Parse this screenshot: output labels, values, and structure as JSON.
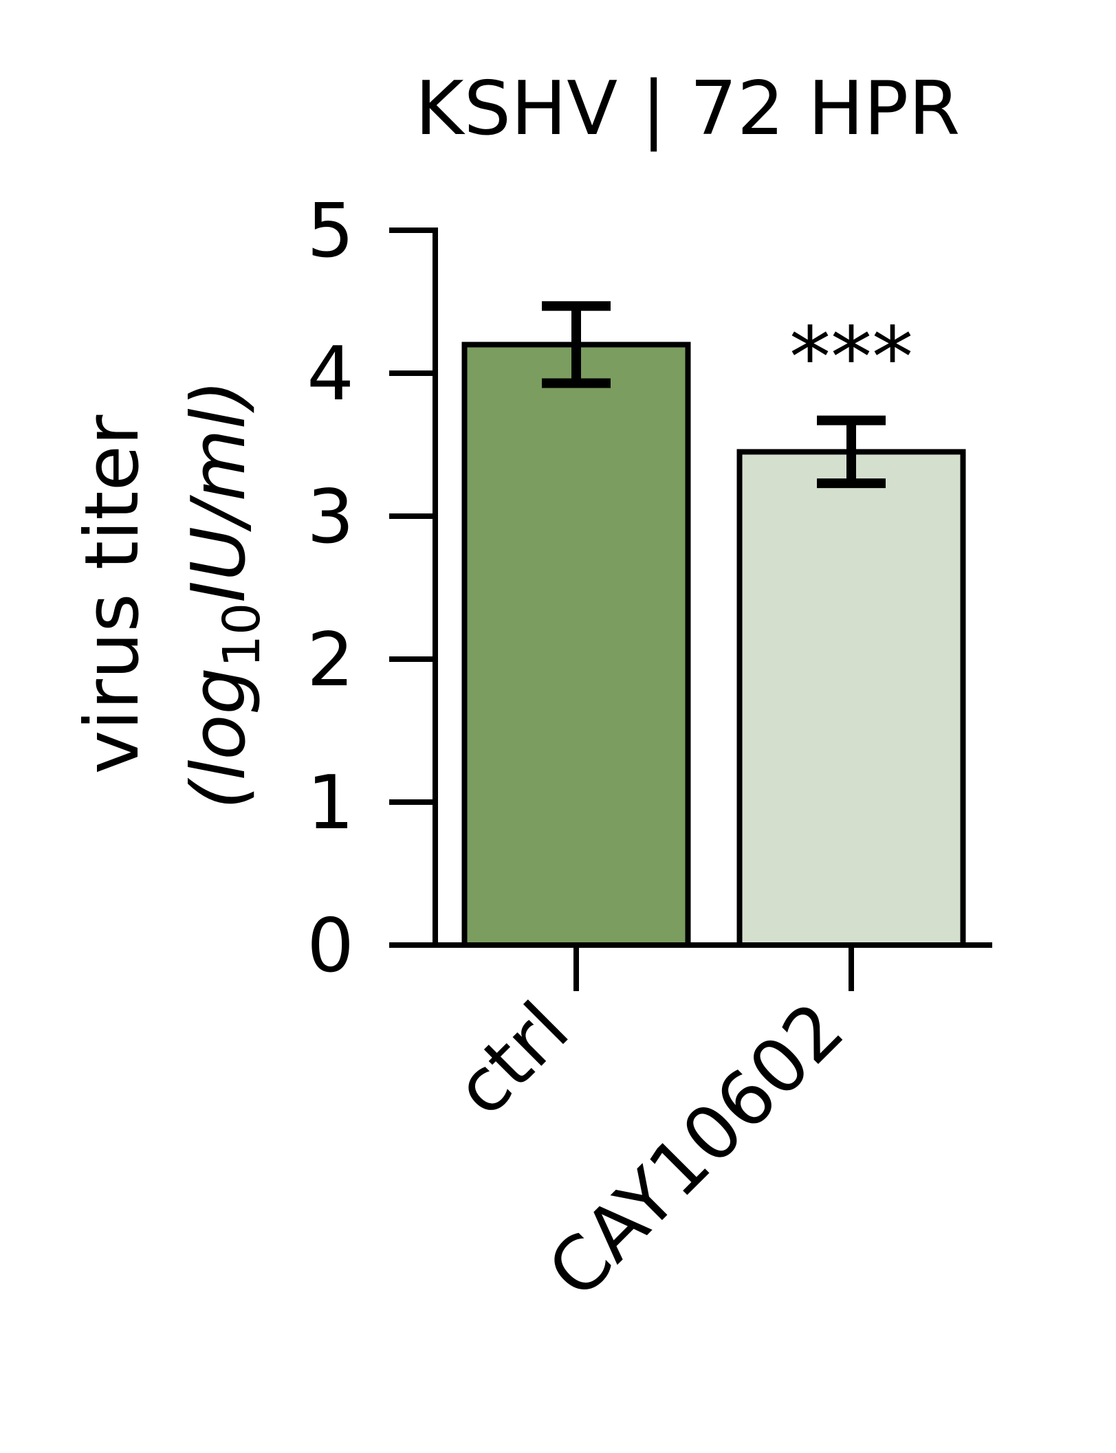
{
  "chart_data": {
    "type": "bar",
    "title": "KSHV | 72 HPR",
    "ylabel_line1": "virus titer",
    "ylabel_line2_prefix": "(log",
    "ylabel_line2_sub": "10",
    "ylabel_line2_suffix": "IU/ml)",
    "xlabel": "",
    "ylim": [
      0,
      5
    ],
    "yticks": [
      "0",
      "1",
      "2",
      "3",
      "4",
      "5"
    ],
    "categories": [
      "ctrl",
      "CAY10602"
    ],
    "values": [
      4.2,
      3.45
    ],
    "errors": [
      0.27,
      0.22
    ],
    "annotations": [
      "",
      "***"
    ],
    "colors": [
      "#7b9d5f",
      "#d4dfcd"
    ],
    "grid": false,
    "legend": "none"
  }
}
